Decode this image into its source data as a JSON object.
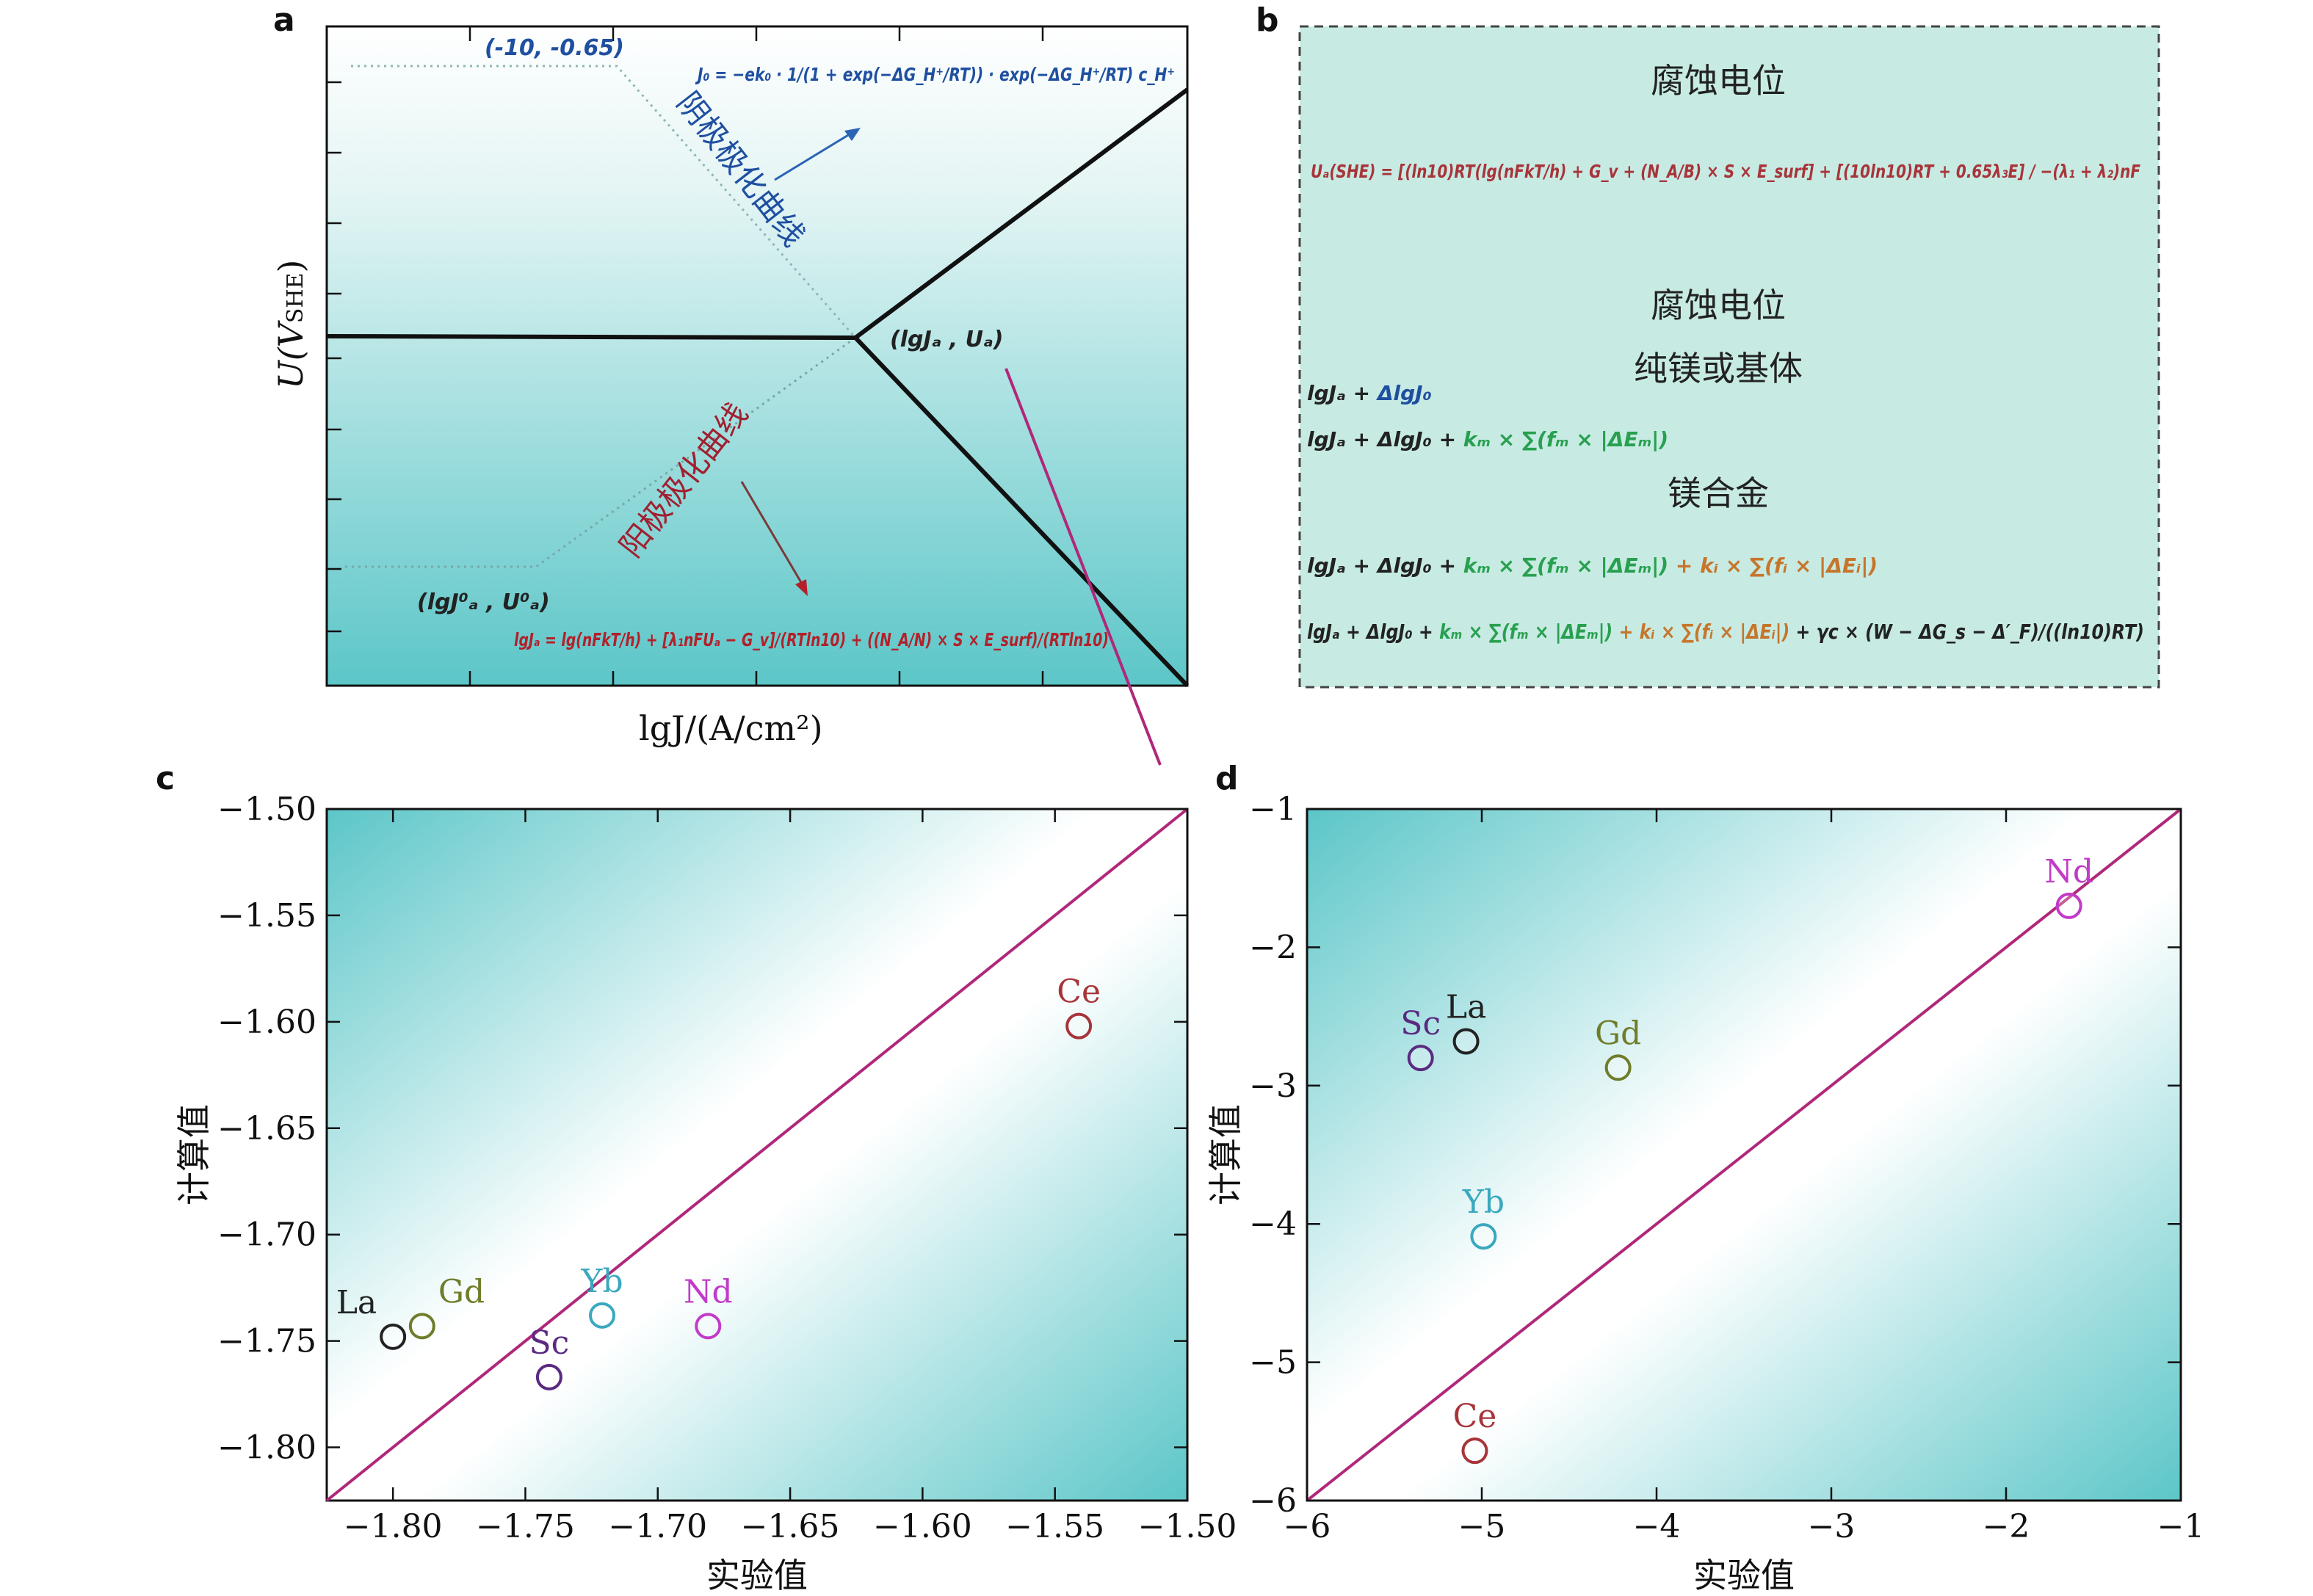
{
  "panels": {
    "a": {
      "letter": "a",
      "y_title_main": "U(V",
      "y_title_sub": "SHE",
      "y_title_close": ")",
      "x_title": "lgJ/(A/cm²)",
      "point_top": "(-10, -0.65)",
      "point_mid": "(lgJₐ , Uₐ)",
      "point_bottom": "(lgJ⁰ₐ , U⁰ₐ)",
      "cathodic_label": "阴极极化曲线",
      "anodic_label": "阳极极化曲线",
      "formula_j0": "J₀ = −ek₀ · 1/(1 + exp(−ΔG_H⁺/RT)) · exp(−ΔG_H⁺/RT) c_H⁺",
      "formula_lgja": "lgJₐ = lg(nFkT/h) + [λ₁nFUₐ − G_v]/(RTln10) + ((N_A/N) × S × E_surf)/(RTln10)"
    },
    "b": {
      "letter": "b",
      "heading1": "腐蚀电位",
      "formula_ua": "Uₐ(SHE) = [(ln10)RT(lg(nFkT/h) + G_v + (N_A/B) × S × E_surf] + [(10ln10)RT + 0.65λ₃E] / −(λ₁ + λ₂)nF",
      "heading2": "腐蚀电位",
      "heading3": "纯镁或基体",
      "line1_a": "lgJₐ + ",
      "line1_b": "ΔlgJ₀",
      "line2_a": "lgJₐ + ΔlgJ₀ + ",
      "line2_b": "kₘ × ∑(fₘ × |ΔEₘ|)",
      "heading4": "镁合金",
      "line3_a": "lgJₐ + ΔlgJ₀ + ",
      "line3_b": "kₘ × ∑(fₘ × |ΔEₘ|)",
      "line3_c": " + kᵢ × ∑(fᵢ × |ΔEᵢ|)",
      "line4_a": "lgJₐ + ΔlgJ₀ + ",
      "line4_b": "kₘ × ∑(fₘ × |ΔEₘ|)",
      "line4_c": " + kᵢ × ∑(fᵢ × |ΔEᵢ|)",
      "line4_d": " + γc × (W − ΔG_s − Δ′_F)/((ln10)RT)"
    },
    "c": {
      "letter": "c"
    },
    "d": {
      "letter": "d"
    }
  },
  "colors": {
    "diag_line": "#b0287a",
    "La": "#222222",
    "Gd": "#6f7d2a",
    "Yb": "#3aa8bf",
    "Nd": "#c23bc8",
    "Sc": "#5a2a80",
    "Ce": "#a8343a",
    "bg_teal": "#5cc6c8",
    "box_bg": "#c7ebe3"
  },
  "chart_data": [
    {
      "type": "scatter",
      "panel": "c",
      "xlabel": "实验值",
      "ylabel": "计算值",
      "xlim": [
        -1.825,
        -1.5
      ],
      "ylim": [
        -1.825,
        -1.5
      ],
      "xticks": [
        "−1.80",
        "−1.75",
        "−1.70",
        "−1.65",
        "−1.60",
        "−1.55",
        "−1.50"
      ],
      "xtick_values": [
        -1.8,
        -1.75,
        -1.7,
        -1.65,
        -1.6,
        -1.55,
        -1.5
      ],
      "yticks": [
        "−1.50",
        "−1.55",
        "−1.60",
        "−1.65",
        "−1.70",
        "−1.75",
        "−1.80"
      ],
      "ytick_values": [
        -1.5,
        -1.55,
        -1.6,
        -1.65,
        -1.7,
        -1.75,
        -1.8
      ],
      "diagonal": true,
      "points": [
        {
          "name": "La",
          "x": -1.8,
          "y": -1.748,
          "color_key": "La",
          "label_pos": "top-left"
        },
        {
          "name": "Gd",
          "x": -1.789,
          "y": -1.743,
          "color_key": "Gd",
          "label_pos": "top-right"
        },
        {
          "name": "Sc",
          "x": -1.741,
          "y": -1.767,
          "color_key": "Sc",
          "label_pos": "top"
        },
        {
          "name": "Yb",
          "x": -1.721,
          "y": -1.738,
          "color_key": "Yb",
          "label_pos": "top"
        },
        {
          "name": "Nd",
          "x": -1.681,
          "y": -1.743,
          "color_key": "Nd",
          "label_pos": "top"
        },
        {
          "name": "Ce",
          "x": -1.541,
          "y": -1.602,
          "color_key": "Ce",
          "label_pos": "top"
        }
      ]
    },
    {
      "type": "scatter",
      "panel": "d",
      "xlabel": "实验值",
      "ylabel": "计算值",
      "xlim": [
        -6,
        -1
      ],
      "ylim": [
        -6,
        -1
      ],
      "xticks": [
        "−6",
        "−5",
        "−4",
        "−3",
        "−2",
        "−1"
      ],
      "xtick_values": [
        -6,
        -5,
        -4,
        -3,
        -2,
        -1
      ],
      "yticks": [
        "−1",
        "−2",
        "−3",
        "−4",
        "−5",
        "−6"
      ],
      "ytick_values": [
        -1,
        -2,
        -3,
        -4,
        -5,
        -6
      ],
      "diagonal": true,
      "points": [
        {
          "name": "Sc",
          "x": -5.35,
          "y": -2.8,
          "color_key": "Sc",
          "label_pos": "top"
        },
        {
          "name": "La",
          "x": -5.09,
          "y": -2.68,
          "color_key": "La",
          "label_pos": "top"
        },
        {
          "name": "Gd",
          "x": -4.22,
          "y": -2.87,
          "color_key": "Gd",
          "label_pos": "top"
        },
        {
          "name": "Yb",
          "x": -4.99,
          "y": -4.09,
          "color_key": "Yb",
          "label_pos": "top"
        },
        {
          "name": "Nd",
          "x": -1.64,
          "y": -1.7,
          "color_key": "Nd",
          "label_pos": "top"
        },
        {
          "name": "Ce",
          "x": -5.04,
          "y": -5.64,
          "color_key": "Ce",
          "label_pos": "top"
        }
      ]
    }
  ]
}
